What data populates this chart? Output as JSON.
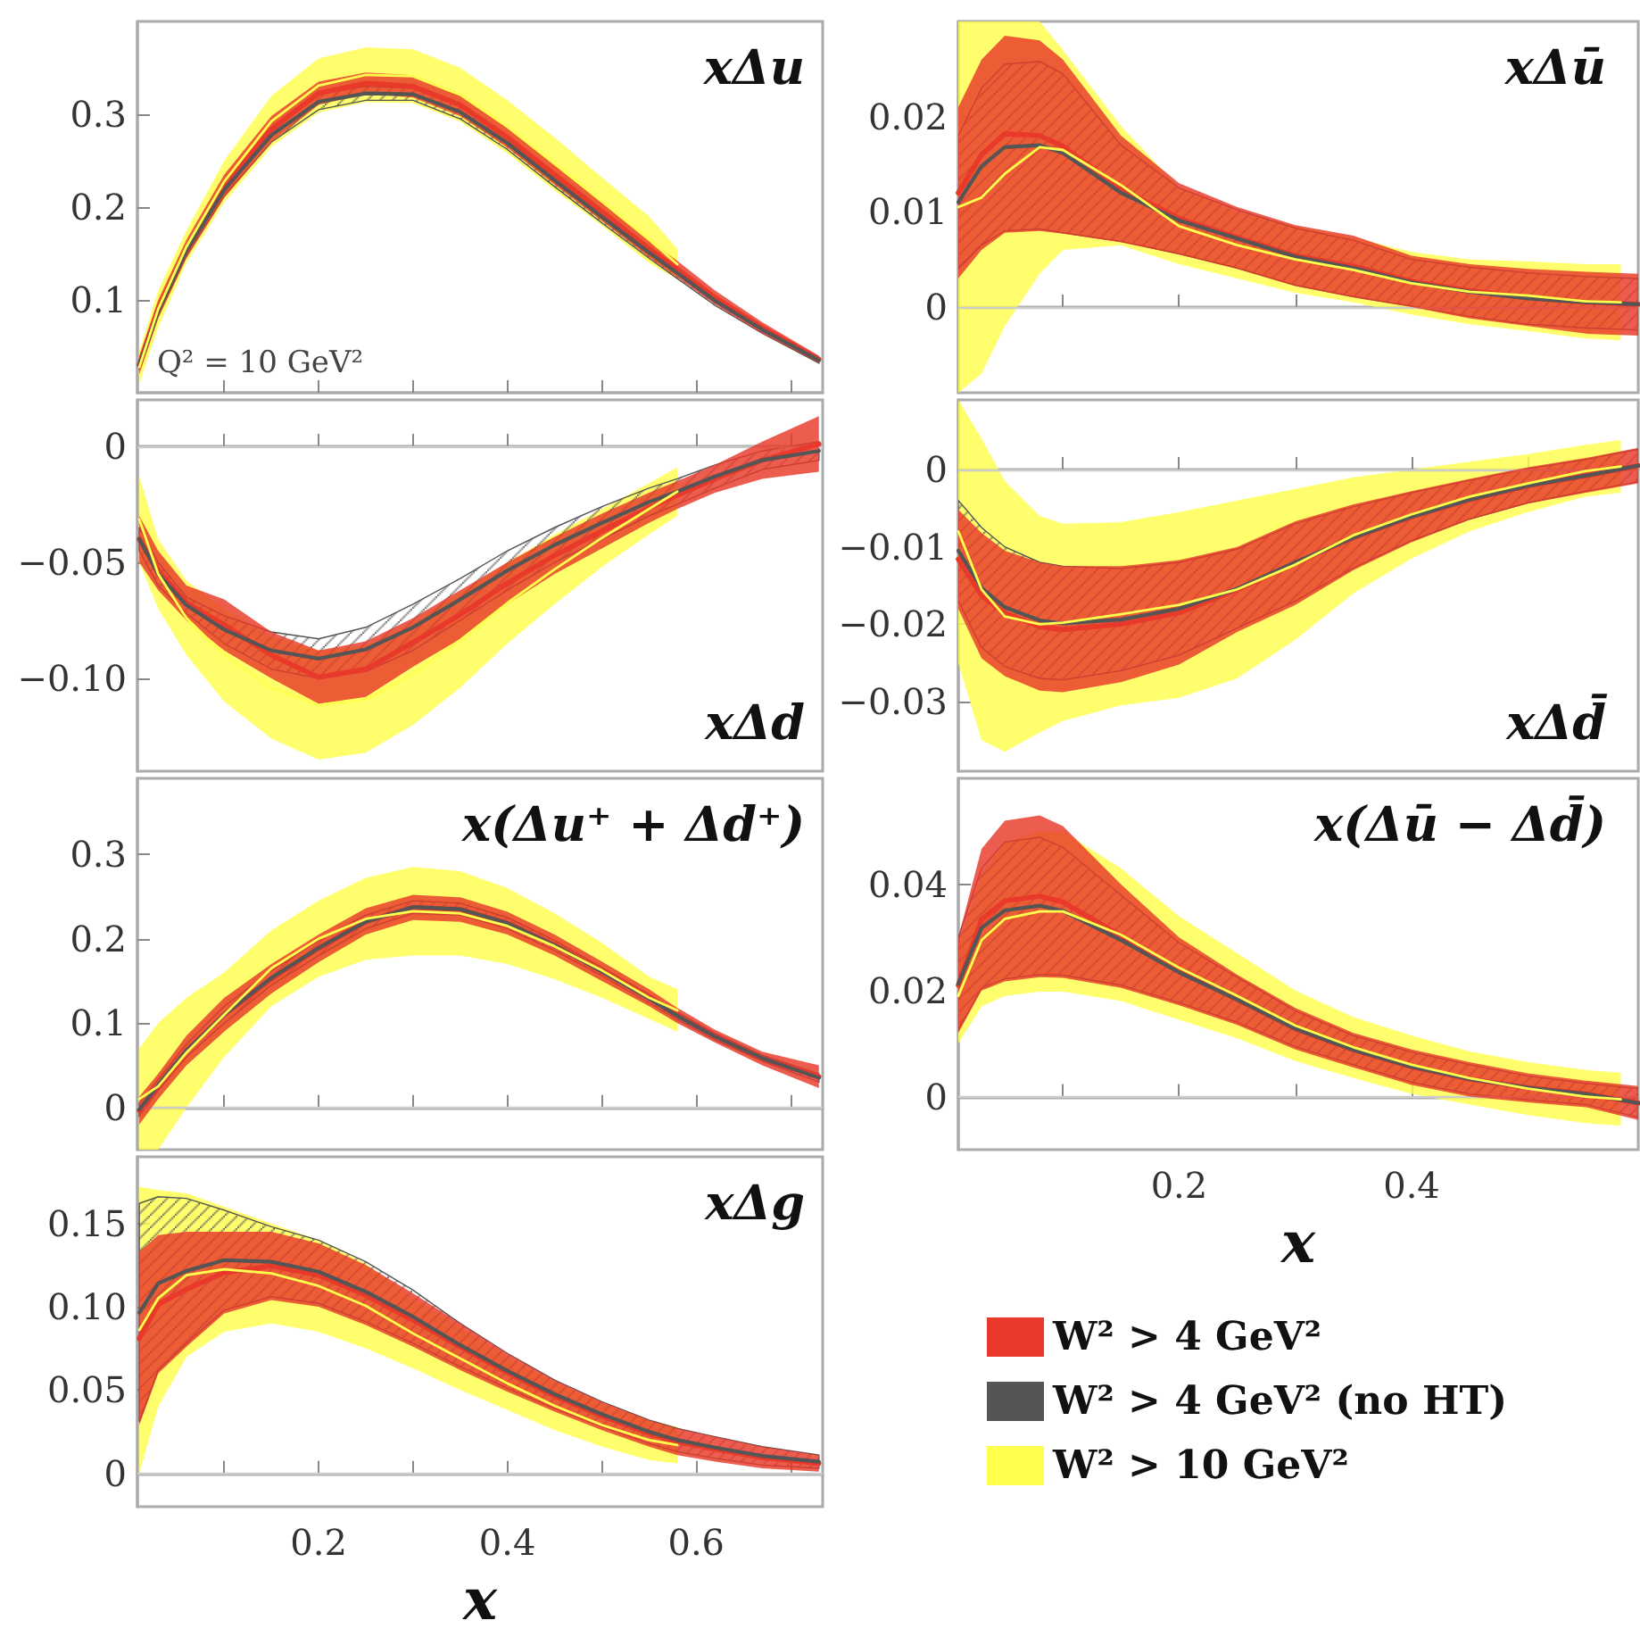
{
  "chart_data": [
    {
      "type": "line",
      "title": "xΔu",
      "annotations": [
        "Q² = 10 GeV²"
      ],
      "xlim": [
        0.008,
        0.734
      ],
      "ylim": [
        0,
        0.4
      ],
      "tick_labels": "y",
      "marker": "none",
      "xticks": [
        {
          "value": 0.1,
          "label": null
        },
        {
          "value": 0.2,
          "label": null
        },
        {
          "value": 0.3,
          "label": null
        },
        {
          "value": 0.4,
          "label": null
        },
        {
          "value": 0.5,
          "label": null
        },
        {
          "value": 0.6,
          "label": null
        },
        {
          "value": 0.7,
          "label": null
        }
      ],
      "yticks": [
        0.1,
        0.2,
        0.3
      ],
      "x": [
        0.01,
        0.03,
        0.06,
        0.1,
        0.15,
        0.2,
        0.25,
        0.3,
        0.35,
        0.4,
        0.45,
        0.5,
        0.55,
        0.58,
        0.62,
        0.67,
        0.73
      ],
      "series": [
        {
          "color": "#e8392a",
          "values": [
            0.03,
            0.09,
            0.155,
            0.2225,
            0.284,
            0.3225,
            0.3335,
            0.33,
            0.31,
            0.275,
            0.235,
            0.195,
            0.155,
            0.133,
            0.1025,
            0.07,
            0.036
          ],
          "lower": [
            0.02,
            0.08,
            0.145,
            0.21,
            0.27,
            0.31,
            0.322,
            0.318,
            0.298,
            0.264,
            0.224,
            0.185,
            0.146,
            0.124,
            0.095,
            0.064,
            0.032
          ],
          "upper": [
            0.04,
            0.1,
            0.165,
            0.235,
            0.298,
            0.335,
            0.345,
            0.342,
            0.322,
            0.286,
            0.246,
            0.205,
            0.164,
            0.142,
            0.11,
            0.076,
            0.04
          ]
        },
        {
          "color": "#555555",
          "values": [
            0.03,
            0.088,
            0.153,
            0.2185,
            0.2775,
            0.3135,
            0.3225,
            0.3215,
            0.3025,
            0.269,
            0.229,
            0.1895,
            0.151,
            0.129,
            0.099,
            0.068,
            0.035
          ],
          "lower": [
            0.025,
            0.083,
            0.148,
            0.212,
            0.27,
            0.305,
            0.315,
            0.315,
            0.295,
            0.262,
            0.222,
            0.183,
            0.145,
            0.123,
            0.094,
            0.064,
            0.032
          ],
          "upper": [
            0.035,
            0.093,
            0.158,
            0.225,
            0.285,
            0.322,
            0.33,
            0.328,
            0.31,
            0.276,
            0.236,
            0.196,
            0.157,
            0.135,
            0.104,
            0.072,
            0.038
          ]
        },
        {
          "color": "#ffff4d",
          "x": [
            0.01,
            0.03,
            0.06,
            0.1,
            0.15,
            0.2,
            0.25,
            0.3,
            0.35,
            0.4,
            0.45,
            0.5,
            0.55,
            0.58
          ],
          "values": [
            0.0275,
            0.09,
            0.1575,
            0.2275,
            0.2925,
            0.331,
            0.3425,
            0.341,
            0.321,
            0.2865,
            0.2465,
            0.206,
            0.165,
            0.1385
          ],
          "lower": [
            0.01,
            0.07,
            0.14,
            0.205,
            0.265,
            0.302,
            0.313,
            0.312,
            0.292,
            0.258,
            0.218,
            0.18,
            0.14,
            0.122
          ],
          "upper": [
            0.045,
            0.11,
            0.175,
            0.25,
            0.32,
            0.36,
            0.372,
            0.37,
            0.35,
            0.315,
            0.275,
            0.232,
            0.19,
            0.155
          ]
        }
      ]
    },
    {
      "type": "line",
      "title": "xΔd",
      "xlim": [
        0.008,
        0.734
      ],
      "ylim": [
        -0.14,
        0.02
      ],
      "tick_labels": "y",
      "marker": "none",
      "xticks": [
        {
          "value": 0.1,
          "label": null
        },
        {
          "value": 0.2,
          "label": null
        },
        {
          "value": 0.3,
          "label": null
        },
        {
          "value": 0.4,
          "label": null
        },
        {
          "value": 0.5,
          "label": null
        },
        {
          "value": 0.6,
          "label": null
        },
        {
          "value": 0.7,
          "label": null
        }
      ],
      "yticks": [
        {
          "value": -0.1,
          "label": "−0.10"
        },
        {
          "value": -0.05,
          "label": "−0.05"
        },
        0
      ],
      "ref_lines": [
        {
          "axis": "y",
          "value": 0,
          "color": "#cccccc"
        }
      ],
      "x": [
        0.01,
        0.03,
        0.06,
        0.1,
        0.15,
        0.2,
        0.25,
        0.3,
        0.35,
        0.4,
        0.45,
        0.5,
        0.55,
        0.58,
        0.62,
        0.67,
        0.73
      ],
      "series": [
        {
          "color": "#e8392a",
          "values": [
            -0.04,
            -0.0535,
            -0.0675,
            -0.077,
            -0.09,
            -0.0995,
            -0.096,
            -0.0845,
            -0.0725,
            -0.059,
            -0.047,
            -0.0365,
            -0.0265,
            -0.021,
            -0.014,
            -0.006,
            0.001
          ],
          "lower": [
            -0.05,
            -0.062,
            -0.075,
            -0.088,
            -0.1,
            -0.111,
            -0.108,
            -0.095,
            -0.083,
            -0.068,
            -0.055,
            -0.044,
            -0.033,
            -0.027,
            -0.02,
            -0.014,
            -0.011
          ],
          "upper": [
            -0.03,
            -0.045,
            -0.06,
            -0.066,
            -0.08,
            -0.088,
            -0.084,
            -0.074,
            -0.062,
            -0.05,
            -0.039,
            -0.029,
            -0.02,
            -0.015,
            -0.008,
            0.002,
            0.013
          ]
        },
        {
          "color": "#555555",
          "values": [
            -0.04,
            -0.055,
            -0.0685,
            -0.079,
            -0.088,
            -0.0915,
            -0.0875,
            -0.078,
            -0.066,
            -0.0535,
            -0.0425,
            -0.033,
            -0.024,
            -0.0195,
            -0.013,
            -0.006,
            -0.002
          ],
          "lower": [
            -0.045,
            -0.06,
            -0.072,
            -0.085,
            -0.096,
            -0.1,
            -0.097,
            -0.088,
            -0.075,
            -0.062,
            -0.05,
            -0.04,
            -0.03,
            -0.025,
            -0.018,
            -0.01,
            -0.006
          ],
          "upper": [
            -0.035,
            -0.05,
            -0.065,
            -0.073,
            -0.08,
            -0.083,
            -0.078,
            -0.068,
            -0.057,
            -0.045,
            -0.035,
            -0.026,
            -0.018,
            -0.014,
            -0.008,
            -0.002,
            0.002
          ]
        },
        {
          "color": "#ffff4d",
          "x": [
            0.01,
            0.03,
            0.06,
            0.1,
            0.15,
            0.2,
            0.25,
            0.3,
            0.35,
            0.4,
            0.45,
            0.5,
            0.55,
            0.58
          ],
          "values": [
            -0.0315,
            -0.055,
            -0.074,
            -0.09,
            -0.104,
            -0.1115,
            -0.109,
            -0.098,
            -0.0835,
            -0.0675,
            -0.053,
            -0.0395,
            -0.027,
            -0.0195
          ],
          "lower": [
            -0.05,
            -0.07,
            -0.09,
            -0.11,
            -0.126,
            -0.135,
            -0.132,
            -0.12,
            -0.104,
            -0.085,
            -0.068,
            -0.052,
            -0.038,
            -0.03
          ],
          "upper": [
            -0.013,
            -0.04,
            -0.058,
            -0.07,
            -0.082,
            -0.088,
            -0.086,
            -0.076,
            -0.063,
            -0.05,
            -0.038,
            -0.027,
            -0.016,
            -0.009
          ]
        }
      ]
    },
    {
      "type": "line",
      "title": "x(Δu⁺ + Δd⁺)",
      "xlim": [
        0.008,
        0.734
      ],
      "ylim": [
        -0.05,
        0.39
      ],
      "tick_labels": "y",
      "marker": "none",
      "xticks": [
        {
          "value": 0.1,
          "label": null
        },
        {
          "value": 0.2,
          "label": null
        },
        {
          "value": 0.3,
          "label": null
        },
        {
          "value": 0.4,
          "label": null
        },
        {
          "value": 0.5,
          "label": null
        },
        {
          "value": 0.6,
          "label": null
        },
        {
          "value": 0.7,
          "label": null
        }
      ],
      "yticks": [
        0,
        0.1,
        0.2,
        0.3
      ],
      "ref_lines": [
        {
          "axis": "y",
          "value": 0,
          "color": "#cccccc"
        }
      ],
      "x": [
        0.01,
        0.03,
        0.06,
        0.1,
        0.15,
        0.2,
        0.25,
        0.3,
        0.35,
        0.4,
        0.45,
        0.5,
        0.55,
        0.58,
        0.62,
        0.67,
        0.73
      ],
      "series": [
        {
          "color": "#e8392a",
          "values": [
            -0.0035,
            0.025,
            0.0675,
            0.11,
            0.1525,
            0.1885,
            0.2205,
            0.237,
            0.2345,
            0.2185,
            0.1925,
            0.1615,
            0.13,
            0.109,
            0.0845,
            0.058,
            0.0365
          ],
          "lower": [
            -0.02,
            0.01,
            0.05,
            0.09,
            0.135,
            0.172,
            0.205,
            0.222,
            0.22,
            0.205,
            0.18,
            0.15,
            0.12,
            0.1,
            0.077,
            0.05,
            0.023
          ],
          "upper": [
            0.013,
            0.04,
            0.085,
            0.13,
            0.17,
            0.205,
            0.236,
            0.252,
            0.249,
            0.232,
            0.205,
            0.173,
            0.14,
            0.118,
            0.092,
            0.066,
            0.05
          ]
        },
        {
          "color": "#555555",
          "values": [
            -0.0025,
            0.0265,
            0.0675,
            0.11,
            0.1535,
            0.189,
            0.22,
            0.2375,
            0.235,
            0.2185,
            0.192,
            0.161,
            0.129,
            0.1085,
            0.084,
            0.0585,
            0.035
          ],
          "lower": [
            -0.01,
            0.02,
            0.06,
            0.1,
            0.145,
            0.18,
            0.212,
            0.23,
            0.228,
            0.212,
            0.186,
            0.156,
            0.124,
            0.104,
            0.08,
            0.055,
            0.03
          ],
          "upper": [
            0.005,
            0.033,
            0.075,
            0.12,
            0.162,
            0.198,
            0.228,
            0.245,
            0.242,
            0.225,
            0.198,
            0.166,
            0.134,
            0.113,
            0.088,
            0.062,
            0.04
          ]
        },
        {
          "color": "#ffff4d",
          "x": [
            0.01,
            0.03,
            0.06,
            0.1,
            0.15,
            0.2,
            0.25,
            0.3,
            0.35,
            0.4,
            0.45,
            0.5,
            0.55,
            0.58
          ],
          "values": [
            0.01,
            0.025,
            0.065,
            0.11,
            0.165,
            0.2,
            0.2235,
            0.2325,
            0.23,
            0.215,
            0.191,
            0.1625,
            0.13,
            0.115
          ],
          "lower": [
            -0.05,
            -0.05,
            0.0,
            0.06,
            0.12,
            0.155,
            0.175,
            0.18,
            0.18,
            0.17,
            0.152,
            0.13,
            0.105,
            0.09
          ],
          "upper": [
            0.07,
            0.1,
            0.13,
            0.16,
            0.21,
            0.245,
            0.272,
            0.285,
            0.28,
            0.26,
            0.23,
            0.195,
            0.155,
            0.14
          ]
        }
      ]
    },
    {
      "type": "line",
      "title": "xΔg",
      "xlabel": "x",
      "xlim": [
        0.008,
        0.734
      ],
      "ylim": [
        -0.02,
        0.19
      ],
      "marker": "none",
      "xticks": [
        {
          "value": 0.1,
          "label": null
        },
        0.2,
        {
          "value": 0.3,
          "label": null
        },
        0.4,
        {
          "value": 0.5,
          "label": null
        },
        0.6,
        {
          "value": 0.7,
          "label": null
        }
      ],
      "yticks": [
        0,
        0.05,
        {
          "value": 0.1,
          "label": "0.10"
        },
        0.15
      ],
      "ref_lines": [
        {
          "axis": "y",
          "value": 0,
          "color": "#cccccc"
        }
      ],
      "x": [
        0.01,
        0.03,
        0.06,
        0.1,
        0.15,
        0.2,
        0.25,
        0.3,
        0.35,
        0.4,
        0.45,
        0.5,
        0.55,
        0.58,
        0.62,
        0.67,
        0.73
      ],
      "series": [
        {
          "color": "#e8392a",
          "values": [
            0.081,
            0.1015,
            0.1105,
            0.1205,
            0.1245,
            0.119,
            0.107,
            0.092,
            0.076,
            0.0605,
            0.0465,
            0.0345,
            0.024,
            0.019,
            0.0145,
            0.0095,
            0.006
          ],
          "lower": [
            0.029,
            0.06,
            0.076,
            0.096,
            0.104,
            0.1,
            0.089,
            0.076,
            0.062,
            0.049,
            0.037,
            0.026,
            0.016,
            0.011,
            0.007,
            0.003,
            0.001
          ],
          "upper": [
            0.133,
            0.143,
            0.145,
            0.145,
            0.145,
            0.138,
            0.125,
            0.108,
            0.09,
            0.072,
            0.056,
            0.043,
            0.032,
            0.027,
            0.022,
            0.016,
            0.011
          ]
        },
        {
          "color": "#555555",
          "values": [
            0.0965,
            0.114,
            0.1215,
            0.128,
            0.127,
            0.121,
            0.109,
            0.094,
            0.077,
            0.0615,
            0.0475,
            0.0355,
            0.025,
            0.02,
            0.0155,
            0.0105,
            0.007
          ],
          "lower": [
            0.031,
            0.062,
            0.078,
            0.098,
            0.106,
            0.102,
            0.091,
            0.078,
            0.064,
            0.051,
            0.039,
            0.028,
            0.018,
            0.013,
            0.009,
            0.005,
            0.003
          ],
          "upper": [
            0.162,
            0.166,
            0.165,
            0.158,
            0.148,
            0.14,
            0.127,
            0.11,
            0.09,
            0.072,
            0.056,
            0.043,
            0.032,
            0.027,
            0.022,
            0.016,
            0.011
          ]
        },
        {
          "color": "#ffff4d",
          "x": [
            0.01,
            0.03,
            0.06,
            0.1,
            0.15,
            0.2,
            0.25,
            0.3,
            0.35,
            0.4,
            0.45,
            0.5,
            0.55,
            0.58
          ],
          "values": [
            0.086,
            0.105,
            0.119,
            0.1225,
            0.12,
            0.1125,
            0.1005,
            0.084,
            0.069,
            0.054,
            0.0405,
            0.029,
            0.02,
            0.017
          ],
          "lower": [
            0.0,
            0.04,
            0.07,
            0.085,
            0.09,
            0.085,
            0.075,
            0.063,
            0.05,
            0.038,
            0.026,
            0.016,
            0.008,
            0.006
          ],
          "upper": [
            0.172,
            0.17,
            0.168,
            0.16,
            0.15,
            0.14,
            0.126,
            0.105,
            0.088,
            0.07,
            0.055,
            0.042,
            0.032,
            0.028
          ]
        }
      ]
    },
    {
      "type": "line",
      "title": "xΔū",
      "xlim": [
        0.01,
        0.595
      ],
      "ylim": [
        -0.009,
        0.03
      ],
      "tick_labels": "y",
      "marker": "none",
      "xticks": [
        {
          "value": 0.1,
          "label": null
        },
        {
          "value": 0.2,
          "label": null
        },
        {
          "value": 0.3,
          "label": null
        },
        {
          "value": 0.4,
          "label": null
        },
        {
          "value": 0.5,
          "label": null
        }
      ],
      "yticks": [
        0,
        0.01,
        0.02
      ],
      "ref_lines": [
        {
          "axis": "y",
          "value": 0,
          "color": "#cccccc"
        }
      ],
      "x": [
        0.01,
        0.03,
        0.05,
        0.08,
        0.1,
        0.15,
        0.2,
        0.25,
        0.3,
        0.35,
        0.4,
        0.45,
        0.5,
        0.55,
        0.595
      ],
      "series": [
        {
          "color": "#e8392a",
          "values": [
            0.012,
            0.016,
            0.0182,
            0.018,
            0.0169,
            0.0124,
            0.0093,
            0.0073,
            0.0054,
            0.0043,
            0.0027,
            0.0017,
            0.001,
            0.0005,
            0.0003
          ],
          "lower": [
            0.003,
            0.006,
            0.0078,
            0.008,
            0.0077,
            0.0068,
            0.0055,
            0.004,
            0.0022,
            0.001,
            0.0,
            -0.0012,
            -0.002,
            -0.0028,
            -0.003
          ],
          "upper": [
            0.021,
            0.026,
            0.0285,
            0.028,
            0.026,
            0.018,
            0.013,
            0.0105,
            0.0086,
            0.0075,
            0.0054,
            0.0045,
            0.004,
            0.0037,
            0.0035
          ]
        },
        {
          "color": "#555555",
          "values": [
            0.011,
            0.0148,
            0.0168,
            0.017,
            0.0162,
            0.012,
            0.0091,
            0.0072,
            0.0053,
            0.0041,
            0.0026,
            0.0016,
            0.0009,
            0.0005,
            0.0003
          ],
          "lower": [
            0.004,
            0.0065,
            0.008,
            0.0082,
            0.0078,
            0.0069,
            0.0056,
            0.0041,
            0.0023,
            0.0011,
            0.0001,
            -0.001,
            -0.0018,
            -0.0022,
            -0.0024
          ],
          "upper": [
            0.018,
            0.023,
            0.0255,
            0.0258,
            0.0245,
            0.017,
            0.0125,
            0.0102,
            0.0083,
            0.007,
            0.005,
            0.0042,
            0.0036,
            0.0032,
            0.003
          ]
        },
        {
          "color": "#ffff4d",
          "x": [
            0.01,
            0.03,
            0.05,
            0.08,
            0.1,
            0.15,
            0.2,
            0.25,
            0.3,
            0.35,
            0.4,
            0.45,
            0.5,
            0.55,
            0.58
          ],
          "values": [
            0.0105,
            0.0115,
            0.014,
            0.0168,
            0.0165,
            0.0128,
            0.0085,
            0.0065,
            0.005,
            0.0039,
            0.0025,
            0.0016,
            0.0012,
            0.0006,
            0.0005
          ],
          "lower": [
            -0.009,
            -0.007,
            -0.002,
            0.0035,
            0.006,
            0.0065,
            0.0045,
            0.003,
            0.0015,
            0.0005,
            -0.0008,
            -0.0018,
            -0.0025,
            -0.0033,
            -0.0035
          ],
          "upper": [
            0.03,
            0.03,
            0.03,
            0.03,
            0.027,
            0.019,
            0.0125,
            0.01,
            0.0085,
            0.0073,
            0.0058,
            0.005,
            0.0048,
            0.0045,
            0.0045
          ]
        }
      ]
    },
    {
      "type": "line",
      "title": "xΔd̄",
      "xlim": [
        0.01,
        0.595
      ],
      "ylim": [
        -0.039,
        0.009
      ],
      "tick_labels": "y",
      "marker": "none",
      "xticks": [
        {
          "value": 0.1,
          "label": null
        },
        {
          "value": 0.2,
          "label": null
        },
        {
          "value": 0.3,
          "label": null
        },
        {
          "value": 0.4,
          "label": null
        },
        {
          "value": 0.5,
          "label": null
        }
      ],
      "yticks": [
        {
          "value": -0.03,
          "label": "−0.03"
        },
        {
          "value": -0.02,
          "label": "−0.02"
        },
        {
          "value": -0.01,
          "label": "−0.01"
        },
        0
      ],
      "ref_lines": [
        {
          "axis": "y",
          "value": 0,
          "color": "#cccccc"
        }
      ],
      "x": [
        0.01,
        0.03,
        0.05,
        0.08,
        0.1,
        0.15,
        0.2,
        0.25,
        0.3,
        0.35,
        0.4,
        0.45,
        0.5,
        0.55,
        0.595
      ],
      "series": [
        {
          "color": "#e8392a",
          "values": [
            -0.0116,
            -0.0163,
            -0.0186,
            -0.0203,
            -0.0207,
            -0.02,
            -0.0185,
            -0.0155,
            -0.0121,
            -0.0088,
            -0.0061,
            -0.0039,
            -0.0021,
            -0.0008,
            0.0005
          ],
          "lower": [
            -0.018,
            -0.0244,
            -0.0267,
            -0.0286,
            -0.0288,
            -0.0275,
            -0.0252,
            -0.021,
            -0.0175,
            -0.013,
            -0.0094,
            -0.0065,
            -0.0044,
            -0.003,
            -0.0018
          ],
          "upper": [
            -0.0052,
            -0.0082,
            -0.0105,
            -0.012,
            -0.0125,
            -0.0125,
            -0.0117,
            -0.01,
            -0.0067,
            -0.0045,
            -0.0028,
            -0.0012,
            0.0003,
            0.0015,
            0.0028
          ]
        },
        {
          "color": "#555555",
          "values": [
            -0.0105,
            -0.0153,
            -0.0178,
            -0.0195,
            -0.0199,
            -0.0194,
            -0.018,
            -0.0154,
            -0.012,
            -0.0088,
            -0.0061,
            -0.0039,
            -0.0021,
            -0.0008,
            0.0005
          ],
          "lower": [
            -0.017,
            -0.023,
            -0.0255,
            -0.027,
            -0.0272,
            -0.026,
            -0.024,
            -0.0205,
            -0.017,
            -0.0127,
            -0.0092,
            -0.0064,
            -0.0043,
            -0.0028,
            -0.0016
          ],
          "upper": [
            -0.004,
            -0.0075,
            -0.01,
            -0.012,
            -0.0125,
            -0.0128,
            -0.012,
            -0.0103,
            -0.007,
            -0.0048,
            -0.003,
            -0.0014,
            0.0001,
            0.0013,
            0.0026
          ]
        },
        {
          "color": "#ffff4d",
          "x": [
            0.01,
            0.03,
            0.05,
            0.08,
            0.1,
            0.15,
            0.2,
            0.25,
            0.3,
            0.35,
            0.4,
            0.45,
            0.5,
            0.55,
            0.58
          ],
          "values": [
            -0.008,
            -0.0155,
            -0.019,
            -0.02,
            -0.0198,
            -0.0187,
            -0.0175,
            -0.0155,
            -0.0123,
            -0.0085,
            -0.0058,
            -0.0035,
            -0.0018,
            -0.0002,
            0.0004
          ],
          "lower": [
            -0.025,
            -0.035,
            -0.0365,
            -0.034,
            -0.0325,
            -0.0305,
            -0.0295,
            -0.027,
            -0.022,
            -0.016,
            -0.0115,
            -0.008,
            -0.0055,
            -0.0035,
            -0.003
          ],
          "upper": [
            0.009,
            0.004,
            -0.0015,
            -0.006,
            -0.007,
            -0.0068,
            -0.0055,
            -0.004,
            -0.0025,
            -0.001,
            0.0,
            0.001,
            0.002,
            0.0032,
            0.0038
          ]
        }
      ]
    },
    {
      "type": "line",
      "title": "x(Δū − Δd̄)",
      "xlabel": "x",
      "legend": "bottom",
      "xlim": [
        0.01,
        0.595
      ],
      "ylim": [
        -0.01,
        0.06
      ],
      "marker": "none",
      "xticks": [
        {
          "value": 0.1,
          "label": null
        },
        0.2,
        {
          "value": 0.3,
          "label": null
        },
        0.4,
        {
          "value": 0.5,
          "label": null
        }
      ],
      "yticks": [
        0,
        0.02,
        0.04
      ],
      "ref_lines": [
        {
          "axis": "y",
          "value": 0,
          "color": "#cccccc"
        }
      ],
      "x": [
        0.01,
        0.03,
        0.05,
        0.08,
        0.1,
        0.15,
        0.2,
        0.25,
        0.3,
        0.35,
        0.4,
        0.45,
        0.5,
        0.55,
        0.595
      ],
      "series": [
        {
          "name": "W² > 4 GeV²",
          "color": "#e8392a",
          "values": [
            0.021,
            0.0334,
            0.0369,
            0.0378,
            0.0367,
            0.0303,
            0.0236,
            0.0183,
            0.0128,
            0.0088,
            0.0056,
            0.0033,
            0.0017,
            0.0005,
            -0.0012
          ],
          "lower": [
            0.012,
            0.02,
            0.0217,
            0.0225,
            0.0224,
            0.0205,
            0.0172,
            0.0135,
            0.0089,
            0.0055,
            0.0022,
            0.0,
            -0.0011,
            -0.002,
            -0.0044
          ],
          "upper": [
            0.03,
            0.0467,
            0.052,
            0.053,
            0.051,
            0.04,
            0.03,
            0.023,
            0.0167,
            0.012,
            0.0089,
            0.0065,
            0.0044,
            0.003,
            0.002
          ]
        },
        {
          "name": "W² > 4 GeV² (no HT)",
          "color": "#555555",
          "values": [
            0.0213,
            0.0318,
            0.0351,
            0.036,
            0.035,
            0.0295,
            0.0234,
            0.0183,
            0.0128,
            0.0088,
            0.0056,
            0.0033,
            0.0017,
            0.0005,
            -0.0012
          ],
          "lower": [
            0.0125,
            0.0205,
            0.0222,
            0.023,
            0.0229,
            0.021,
            0.0177,
            0.014,
            0.0094,
            0.006,
            0.0027,
            0.0005,
            -0.0006,
            -0.0015,
            -0.0039
          ],
          "upper": [
            0.03,
            0.043,
            0.048,
            0.0489,
            0.047,
            0.038,
            0.029,
            0.0225,
            0.0162,
            0.0115,
            0.0084,
            0.006,
            0.0039,
            0.0025,
            0.0015
          ]
        },
        {
          "name": "W² > 10 GeV²",
          "color": "#ffff4d",
          "x": [
            0.01,
            0.03,
            0.05,
            0.08,
            0.1,
            0.15,
            0.2,
            0.25,
            0.3,
            0.35,
            0.4,
            0.45,
            0.5,
            0.55,
            0.58
          ],
          "values": [
            0.019,
            0.0295,
            0.0335,
            0.0349,
            0.0349,
            0.0305,
            0.0243,
            0.019,
            0.0134,
            0.0093,
            0.006,
            0.0035,
            0.0015,
            0.0,
            -0.0005
          ],
          "lower": [
            0.01,
            0.017,
            0.019,
            0.0198,
            0.0198,
            0.018,
            0.0145,
            0.011,
            0.0067,
            0.0035,
            0.0005,
            -0.0015,
            -0.0035,
            -0.005,
            -0.0055
          ],
          "upper": [
            0.028,
            0.042,
            0.048,
            0.05,
            0.05,
            0.043,
            0.034,
            0.027,
            0.02,
            0.015,
            0.0115,
            0.0085,
            0.0065,
            0.005,
            0.0045
          ]
        }
      ]
    }
  ]
}
